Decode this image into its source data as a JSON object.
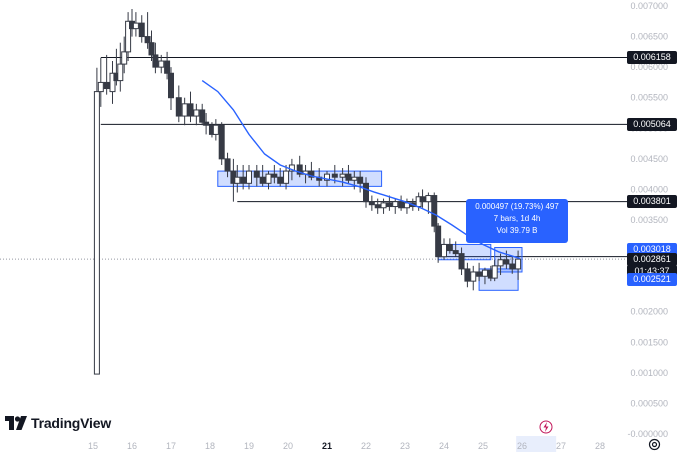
{
  "chart_data": {
    "type": "candlestick",
    "y_axis_ticks": [
      "0.007000",
      "0.006500",
      "0.006000",
      "0.005500",
      "0.005000",
      "0.004500",
      "0.004000",
      "0.003500",
      "0.003000",
      "0.002500",
      "0.002000",
      "0.001500",
      "0.001000",
      "0.000500",
      "-0.000000"
    ],
    "x_axis_ticks": [
      "15",
      "16",
      "17",
      "18",
      "19",
      "20",
      "21",
      "22",
      "23",
      "24",
      "25",
      "26",
      "27",
      "28"
    ],
    "ylim": [
      0,
      0.007
    ],
    "horizontal_lines": [
      0.006158,
      0.005064,
      0.003801,
      0.002902
    ],
    "price_labels": [
      {
        "text": "0.006158",
        "style": "dark",
        "value": 0.006158
      },
      {
        "text": "0.005064",
        "style": "dark",
        "value": 0.005064
      },
      {
        "text": "0.003801",
        "style": "dark",
        "value": 0.003801
      },
      {
        "text": "0.002902",
        "style": "dark",
        "value": 0.002902
      },
      {
        "text": "0.003018",
        "style": "blue",
        "value": 0.003018
      },
      {
        "text": "0.002861",
        "style": "dark",
        "value": 0.002861
      },
      {
        "text": "01:43:37",
        "style": "dark",
        "value": 0.00265
      },
      {
        "text": "0.002521",
        "style": "blue",
        "value": 0.002521
      }
    ],
    "candles": [
      {
        "x": 15.1,
        "o": 0.00098,
        "h": 0.00599,
        "l": 0.00098,
        "c": 0.0056
      },
      {
        "x": 15.2,
        "o": 0.0056,
        "h": 0.00615,
        "l": 0.00535,
        "c": 0.00575
      },
      {
        "x": 15.35,
        "o": 0.00575,
        "h": 0.0062,
        "l": 0.00555,
        "c": 0.00565
      },
      {
        "x": 15.5,
        "o": 0.0056,
        "h": 0.0061,
        "l": 0.0054,
        "c": 0.0059
      },
      {
        "x": 15.6,
        "o": 0.0059,
        "h": 0.0063,
        "l": 0.0057,
        "c": 0.00578
      },
      {
        "x": 15.7,
        "o": 0.00578,
        "h": 0.0064,
        "l": 0.0056,
        "c": 0.00605
      },
      {
        "x": 15.8,
        "o": 0.00605,
        "h": 0.0065,
        "l": 0.0059,
        "c": 0.00625
      },
      {
        "x": 15.9,
        "o": 0.00625,
        "h": 0.0069,
        "l": 0.0061,
        "c": 0.00675
      },
      {
        "x": 16.0,
        "o": 0.00675,
        "h": 0.00695,
        "l": 0.0065,
        "c": 0.00663
      },
      {
        "x": 16.1,
        "o": 0.00663,
        "h": 0.0069,
        "l": 0.0065,
        "c": 0.00672
      },
      {
        "x": 16.25,
        "o": 0.00672,
        "h": 0.00685,
        "l": 0.0064,
        "c": 0.0065
      },
      {
        "x": 16.4,
        "o": 0.0065,
        "h": 0.0069,
        "l": 0.0063,
        "c": 0.0064
      },
      {
        "x": 16.5,
        "o": 0.0064,
        "h": 0.0066,
        "l": 0.0061,
        "c": 0.0062
      },
      {
        "x": 16.6,
        "o": 0.0062,
        "h": 0.0064,
        "l": 0.0059,
        "c": 0.006
      },
      {
        "x": 16.75,
        "o": 0.006,
        "h": 0.0062,
        "l": 0.0059,
        "c": 0.0061
      },
      {
        "x": 16.9,
        "o": 0.0061,
        "h": 0.00625,
        "l": 0.0058,
        "c": 0.0059
      },
      {
        "x": 17.0,
        "o": 0.0059,
        "h": 0.006,
        "l": 0.0053,
        "c": 0.0055
      },
      {
        "x": 17.2,
        "o": 0.0055,
        "h": 0.0057,
        "l": 0.0051,
        "c": 0.0052
      },
      {
        "x": 17.35,
        "o": 0.0052,
        "h": 0.0055,
        "l": 0.00505,
        "c": 0.0054
      },
      {
        "x": 17.5,
        "o": 0.0054,
        "h": 0.0056,
        "l": 0.0051,
        "c": 0.0052
      },
      {
        "x": 17.65,
        "o": 0.0052,
        "h": 0.0054,
        "l": 0.00505,
        "c": 0.0053
      },
      {
        "x": 17.8,
        "o": 0.0053,
        "h": 0.0054,
        "l": 0.00505,
        "c": 0.0051
      },
      {
        "x": 17.9,
        "o": 0.0051,
        "h": 0.00525,
        "l": 0.0049,
        "c": 0.00505
      },
      {
        "x": 18.05,
        "o": 0.00505,
        "h": 0.0051,
        "l": 0.00485,
        "c": 0.0049
      },
      {
        "x": 18.15,
        "o": 0.0049,
        "h": 0.00515,
        "l": 0.0048,
        "c": 0.00505
      },
      {
        "x": 18.3,
        "o": 0.00505,
        "h": 0.0051,
        "l": 0.0044,
        "c": 0.0045
      },
      {
        "x": 18.45,
        "o": 0.0045,
        "h": 0.0046,
        "l": 0.0042,
        "c": 0.0043
      },
      {
        "x": 18.6,
        "o": 0.0043,
        "h": 0.0045,
        "l": 0.0038,
        "c": 0.0041
      },
      {
        "x": 18.7,
        "o": 0.0041,
        "h": 0.0044,
        "l": 0.00395,
        "c": 0.0042
      },
      {
        "x": 18.85,
        "o": 0.0042,
        "h": 0.0044,
        "l": 0.004,
        "c": 0.0041
      },
      {
        "x": 19.0,
        "o": 0.0041,
        "h": 0.0044,
        "l": 0.004,
        "c": 0.0043
      },
      {
        "x": 19.2,
        "o": 0.0043,
        "h": 0.0044,
        "l": 0.00405,
        "c": 0.0042
      },
      {
        "x": 19.35,
        "o": 0.0042,
        "h": 0.0044,
        "l": 0.00405,
        "c": 0.0041
      },
      {
        "x": 19.5,
        "o": 0.0041,
        "h": 0.0043,
        "l": 0.004,
        "c": 0.00425
      },
      {
        "x": 19.65,
        "o": 0.00425,
        "h": 0.0044,
        "l": 0.0041,
        "c": 0.0042
      },
      {
        "x": 19.8,
        "o": 0.0042,
        "h": 0.00435,
        "l": 0.00405,
        "c": 0.0041
      },
      {
        "x": 19.95,
        "o": 0.0041,
        "h": 0.0044,
        "l": 0.004,
        "c": 0.0043
      },
      {
        "x": 20.1,
        "o": 0.0043,
        "h": 0.0045,
        "l": 0.00415,
        "c": 0.0044
      },
      {
        "x": 20.3,
        "o": 0.0044,
        "h": 0.00455,
        "l": 0.0042,
        "c": 0.00425
      },
      {
        "x": 20.45,
        "o": 0.00425,
        "h": 0.0044,
        "l": 0.0041,
        "c": 0.0043
      },
      {
        "x": 20.6,
        "o": 0.0043,
        "h": 0.00445,
        "l": 0.00415,
        "c": 0.0042
      },
      {
        "x": 20.8,
        "o": 0.0042,
        "h": 0.00435,
        "l": 0.00405,
        "c": 0.00415
      },
      {
        "x": 21.0,
        "o": 0.00415,
        "h": 0.0043,
        "l": 0.00405,
        "c": 0.00425
      },
      {
        "x": 21.2,
        "o": 0.00425,
        "h": 0.0044,
        "l": 0.0041,
        "c": 0.0042
      },
      {
        "x": 21.4,
        "o": 0.0042,
        "h": 0.00435,
        "l": 0.00405,
        "c": 0.00425
      },
      {
        "x": 21.55,
        "o": 0.00425,
        "h": 0.0044,
        "l": 0.0041,
        "c": 0.00415
      },
      {
        "x": 21.7,
        "o": 0.00415,
        "h": 0.0043,
        "l": 0.004,
        "c": 0.0042
      },
      {
        "x": 21.85,
        "o": 0.0042,
        "h": 0.0043,
        "l": 0.00395,
        "c": 0.0041
      },
      {
        "x": 22.0,
        "o": 0.0041,
        "h": 0.0042,
        "l": 0.0037,
        "c": 0.0038
      },
      {
        "x": 22.15,
        "o": 0.0038,
        "h": 0.0039,
        "l": 0.00365,
        "c": 0.00375
      },
      {
        "x": 22.3,
        "o": 0.00375,
        "h": 0.00385,
        "l": 0.0036,
        "c": 0.0037
      },
      {
        "x": 22.45,
        "o": 0.0037,
        "h": 0.00385,
        "l": 0.0036,
        "c": 0.00378
      },
      {
        "x": 22.6,
        "o": 0.00378,
        "h": 0.0039,
        "l": 0.00365,
        "c": 0.00372
      },
      {
        "x": 22.75,
        "o": 0.00372,
        "h": 0.00385,
        "l": 0.0036,
        "c": 0.0038
      },
      {
        "x": 22.9,
        "o": 0.0038,
        "h": 0.0039,
        "l": 0.00365,
        "c": 0.0037
      },
      {
        "x": 23.05,
        "o": 0.0037,
        "h": 0.00385,
        "l": 0.0036,
        "c": 0.00378
      },
      {
        "x": 23.2,
        "o": 0.00378,
        "h": 0.00385,
        "l": 0.00365,
        "c": 0.00372
      },
      {
        "x": 23.35,
        "o": 0.00372,
        "h": 0.00395,
        "l": 0.00365,
        "c": 0.00388
      },
      {
        "x": 23.45,
        "o": 0.00388,
        "h": 0.004,
        "l": 0.0037,
        "c": 0.0038
      },
      {
        "x": 23.6,
        "o": 0.0038,
        "h": 0.00395,
        "l": 0.0036,
        "c": 0.0039
      },
      {
        "x": 23.75,
        "o": 0.0039,
        "h": 0.00395,
        "l": 0.0033,
        "c": 0.0034
      },
      {
        "x": 23.85,
        "o": 0.0034,
        "h": 0.00345,
        "l": 0.0028,
        "c": 0.0029
      },
      {
        "x": 24.0,
        "o": 0.0029,
        "h": 0.0032,
        "l": 0.00285,
        "c": 0.0031
      },
      {
        "x": 24.15,
        "o": 0.0031,
        "h": 0.0032,
        "l": 0.00295,
        "c": 0.003
      },
      {
        "x": 24.3,
        "o": 0.003,
        "h": 0.00315,
        "l": 0.0029,
        "c": 0.00295
      },
      {
        "x": 24.45,
        "o": 0.00295,
        "h": 0.00305,
        "l": 0.0026,
        "c": 0.0027
      },
      {
        "x": 24.6,
        "o": 0.0027,
        "h": 0.0028,
        "l": 0.0024,
        "c": 0.0025
      },
      {
        "x": 24.75,
        "o": 0.0025,
        "h": 0.00275,
        "l": 0.00235,
        "c": 0.00265
      },
      {
        "x": 24.9,
        "o": 0.00265,
        "h": 0.0028,
        "l": 0.0025,
        "c": 0.00258
      },
      {
        "x": 25.05,
        "o": 0.00258,
        "h": 0.00272,
        "l": 0.00245,
        "c": 0.00268
      },
      {
        "x": 25.2,
        "o": 0.00268,
        "h": 0.00275,
        "l": 0.0025,
        "c": 0.00255
      },
      {
        "x": 25.3,
        "o": 0.00255,
        "h": 0.00285,
        "l": 0.0025,
        "c": 0.00275
      },
      {
        "x": 25.45,
        "o": 0.00275,
        "h": 0.00295,
        "l": 0.0026,
        "c": 0.00285
      },
      {
        "x": 25.6,
        "o": 0.00285,
        "h": 0.003,
        "l": 0.0027,
        "c": 0.00278
      },
      {
        "x": 25.75,
        "o": 0.00278,
        "h": 0.0029,
        "l": 0.00262,
        "c": 0.0027
      },
      {
        "x": 25.9,
        "o": 0.0027,
        "h": 0.003,
        "l": 0.00252,
        "c": 0.00286
      }
    ],
    "ma_line": [
      [
        17.8,
        0.00578
      ],
      [
        18.2,
        0.0056
      ],
      [
        18.6,
        0.0053
      ],
      [
        19.0,
        0.0049
      ],
      [
        19.4,
        0.00458
      ],
      [
        19.8,
        0.0044
      ],
      [
        20.2,
        0.0043
      ],
      [
        20.6,
        0.00422
      ],
      [
        21.0,
        0.00417
      ],
      [
        21.4,
        0.00412
      ],
      [
        21.8,
        0.00405
      ],
      [
        22.2,
        0.00396
      ],
      [
        22.6,
        0.00388
      ],
      [
        23.0,
        0.0038
      ],
      [
        23.4,
        0.0037
      ],
      [
        23.8,
        0.00358
      ],
      [
        24.2,
        0.00342
      ],
      [
        24.6,
        0.00325
      ],
      [
        25.0,
        0.0031
      ],
      [
        25.4,
        0.00298
      ],
      [
        25.8,
        0.0029
      ],
      [
        25.95,
        0.00287
      ]
    ],
    "zones": [
      {
        "x0": 18.2,
        "x1": 22.4,
        "y0": 0.00405,
        "y1": 0.0043
      },
      {
        "x0": 23.85,
        "x1": 25.2,
        "y0": 0.00285,
        "y1": 0.0031
      },
      {
        "x0": 24.9,
        "x1": 25.9,
        "y0": 0.00235,
        "y1": 0.0027
      },
      {
        "x0": 25.3,
        "x1": 26.0,
        "y0": 0.00265,
        "y1": 0.00305
      }
    ],
    "current_price": 0.002861,
    "tooltip": {
      "line1": "0.000497 (19.73%) 497",
      "line2": "7 bars, 1d 4h",
      "line3": "Vol 39.79 B"
    }
  },
  "branding": {
    "logo_text": "TradingView"
  },
  "colors": {
    "up": "#ffffff",
    "down": "#363a45",
    "ma": "#2962ff",
    "zone_fill": "rgba(41,98,255,0.22)",
    "zone_stroke": "#2962ff"
  }
}
